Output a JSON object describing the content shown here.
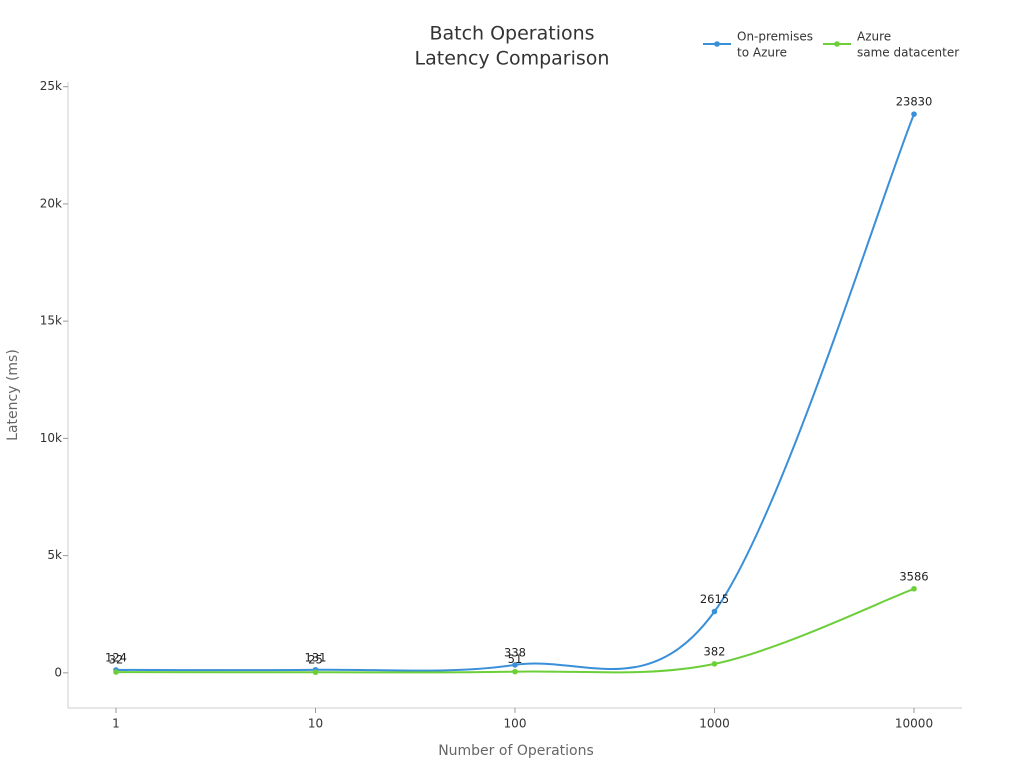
{
  "chart_data": {
    "type": "line",
    "title": [
      "Batch Operations",
      "Latency Comparison"
    ],
    "x_label": "Number of Operations",
    "y_label": "Latency (ms)",
    "categories": [
      "1",
      "10",
      "100",
      "1000",
      "10000"
    ],
    "series": [
      {
        "name": [
          "On-premises",
          "to Azure"
        ],
        "color": "#3a8fd9",
        "values": [
          124,
          131,
          338,
          2615,
          23830
        ]
      },
      {
        "name": [
          "Azure",
          "same datacenter"
        ],
        "color": "#6ccf3a",
        "values": [
          32,
          25,
          51,
          382,
          3586
        ]
      }
    ],
    "ylim": [
      -1500,
      25200
    ],
    "yticks": [
      0,
      {
        "value": 5000,
        "label": "5k"
      },
      {
        "value": 10000,
        "label": "10k"
      },
      {
        "value": 15000,
        "label": "15k"
      },
      {
        "value": 20000,
        "label": "20k"
      },
      {
        "value": 25000,
        "label": "25k"
      }
    ],
    "grid": false,
    "legend": "top-right"
  }
}
